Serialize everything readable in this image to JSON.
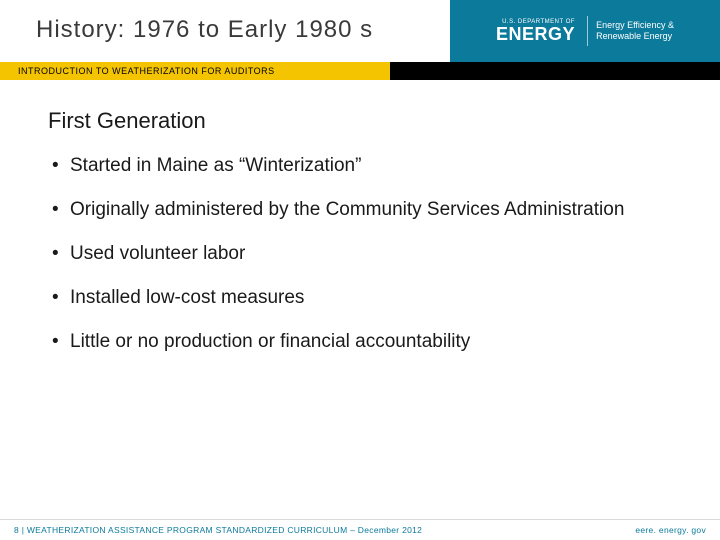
{
  "colors": {
    "teal": "#0b7a9b",
    "gold": "#f4c400",
    "black": "#000000",
    "white": "#ffffff",
    "title_text": "#3a3a3a",
    "body_text": "#1a1a1a",
    "footer_rule": "#d9d9d9",
    "footer_text": "#0b7a9b"
  },
  "header": {
    "title": "History: 1976 to Early 1980 s",
    "doe_department": "U.S. DEPARTMENT OF",
    "doe_energy": "ENERGY",
    "doe_line1": "Energy Efficiency &",
    "doe_line2": "Renewable Energy"
  },
  "subbar": {
    "label": "INTRODUCTION TO WEATHERIZATION FOR AUDITORS"
  },
  "content": {
    "subtitle": "First Generation",
    "bullets": [
      "Started in Maine as “Winterization”",
      "Originally administered by the Community Services Administration",
      "Used volunteer labor",
      "Installed low-cost measures",
      "Little or no production or financial accountability"
    ]
  },
  "footer": {
    "left": "8 | WEATHERIZATION ASSISTANCE PROGRAM STANDARDIZED CURRICULUM – December 2012",
    "right": "eere. energy. gov"
  }
}
